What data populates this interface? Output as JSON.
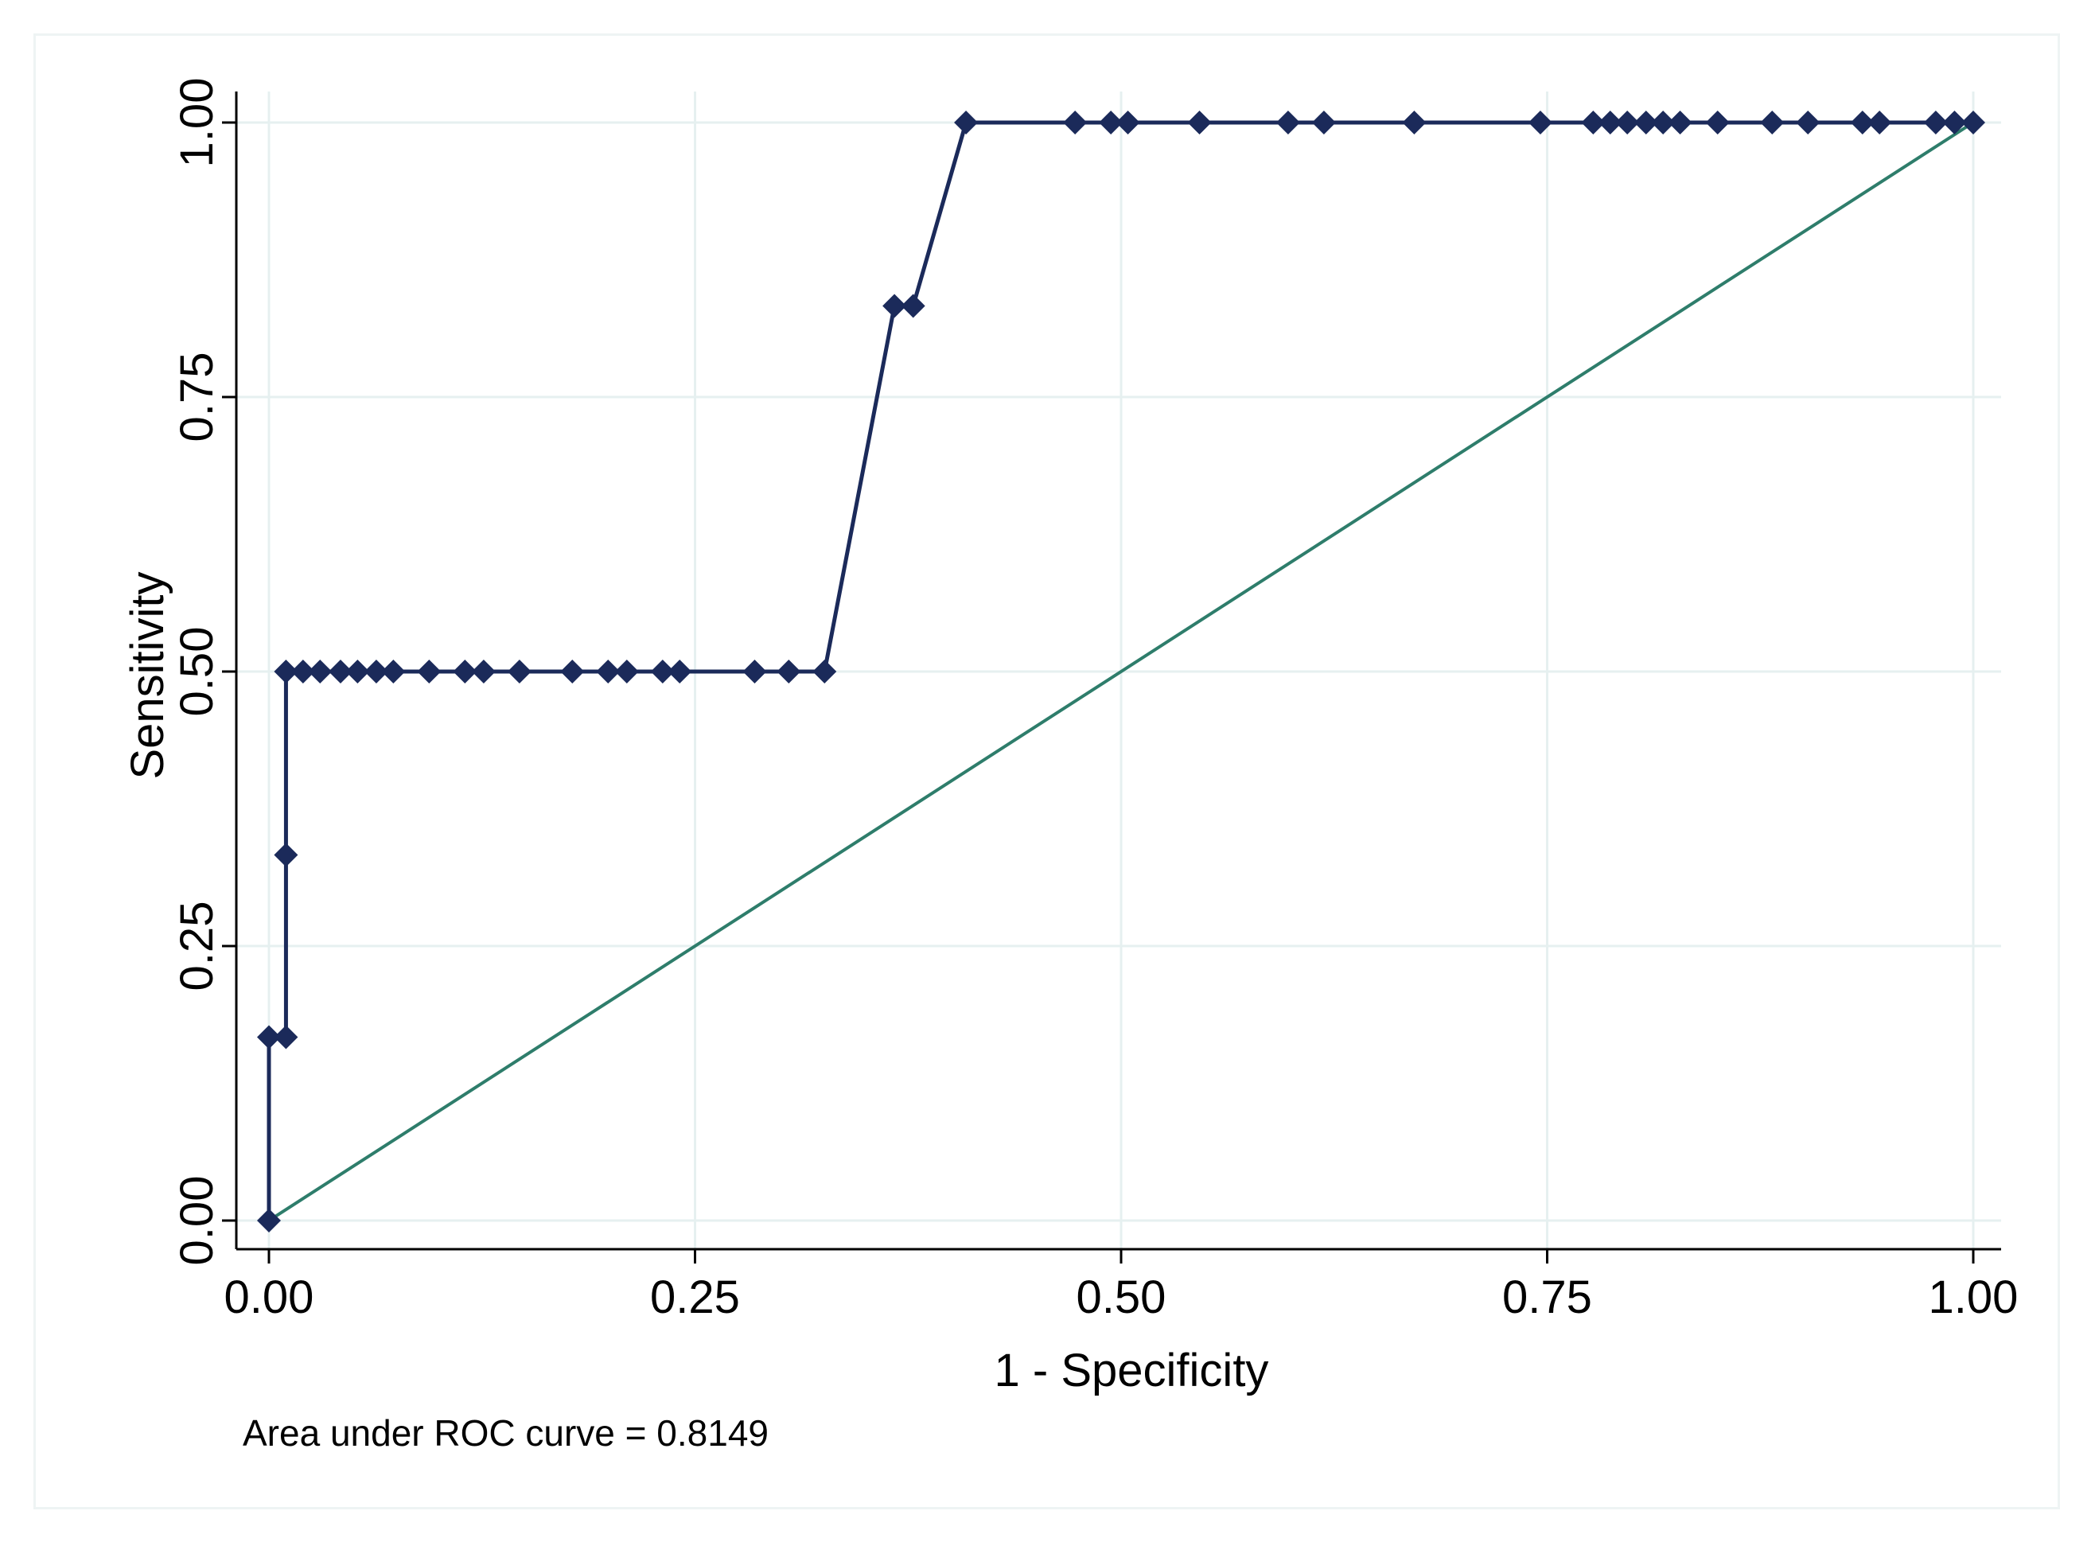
{
  "chart_data": {
    "type": "line",
    "xlabel": "1 - Specificity",
    "ylabel": "Sensitivity",
    "xlim": [
      0,
      1
    ],
    "ylim": [
      0,
      1
    ],
    "x_ticks": [
      "0.00",
      "0.25",
      "0.50",
      "0.75",
      "1.00"
    ],
    "y_ticks": [
      "0.00",
      "0.25",
      "0.50",
      "0.75",
      "1.00"
    ],
    "grid": true,
    "note": "Area under ROC curve = 0.8149",
    "series": [
      {
        "color": "#1b2a5a",
        "marker": "diamond",
        "points": [
          [
            0.0,
            0.0
          ],
          [
            0.0,
            0.167
          ],
          [
            0.01,
            0.167
          ],
          [
            0.01,
            0.333
          ],
          [
            0.01,
            0.5
          ],
          [
            0.02,
            0.5
          ],
          [
            0.03,
            0.5
          ],
          [
            0.042,
            0.5
          ],
          [
            0.052,
            0.5
          ],
          [
            0.063,
            0.5
          ],
          [
            0.073,
            0.5
          ],
          [
            0.094,
            0.5
          ],
          [
            0.115,
            0.5
          ],
          [
            0.126,
            0.5
          ],
          [
            0.147,
            0.5
          ],
          [
            0.178,
            0.5
          ],
          [
            0.199,
            0.5
          ],
          [
            0.21,
            0.5
          ],
          [
            0.231,
            0.5
          ],
          [
            0.241,
            0.5
          ],
          [
            0.285,
            0.5
          ],
          [
            0.305,
            0.5
          ],
          [
            0.326,
            0.5
          ],
          [
            0.367,
            0.833
          ],
          [
            0.378,
            0.833
          ],
          [
            0.409,
            1.0
          ],
          [
            0.473,
            1.0
          ],
          [
            0.494,
            1.0
          ],
          [
            0.504,
            1.0
          ],
          [
            0.546,
            1.0
          ],
          [
            0.598,
            1.0
          ],
          [
            0.619,
            1.0
          ],
          [
            0.672,
            1.0
          ],
          [
            0.746,
            1.0
          ],
          [
            0.777,
            1.0
          ],
          [
            0.787,
            1.0
          ],
          [
            0.797,
            1.0
          ],
          [
            0.808,
            1.0
          ],
          [
            0.818,
            1.0
          ],
          [
            0.828,
            1.0
          ],
          [
            0.85,
            1.0
          ],
          [
            0.882,
            1.0
          ],
          [
            0.903,
            1.0
          ],
          [
            0.935,
            1.0
          ],
          [
            0.945,
            1.0
          ],
          [
            0.978,
            1.0
          ],
          [
            0.989,
            1.0
          ],
          [
            1.0,
            1.0
          ]
        ]
      },
      {
        "color": "#2e7d6b",
        "marker": "none",
        "points": [
          [
            0,
            0
          ],
          [
            1,
            1
          ]
        ]
      }
    ]
  }
}
